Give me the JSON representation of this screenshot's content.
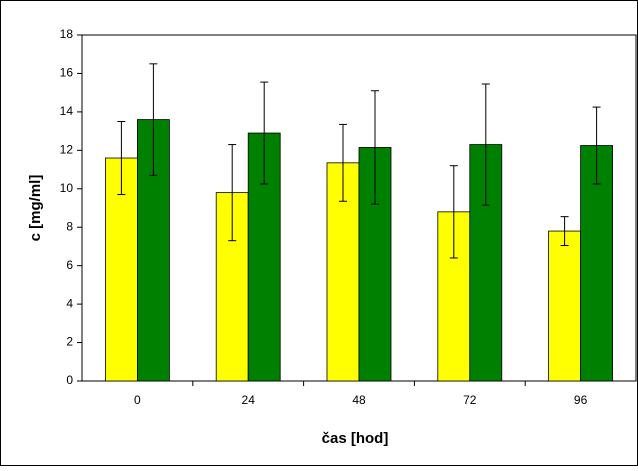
{
  "chart_data": {
    "type": "bar",
    "x_label": "čas [hod]",
    "y_label": "c [mg/ml]",
    "categories": [
      "0",
      "24",
      "48",
      "72",
      "96"
    ],
    "series": [
      {
        "color": "#ffff00",
        "values": [
          11.6,
          9.8,
          11.35,
          8.8,
          7.8
        ],
        "errors": [
          1.9,
          2.5,
          2.0,
          2.4,
          0.75
        ]
      },
      {
        "color": "#008000",
        "values": [
          13.6,
          12.9,
          12.15,
          12.3,
          12.25
        ],
        "errors": [
          2.9,
          2.65,
          2.95,
          3.15,
          2.0
        ]
      }
    ],
    "ylim": [
      0,
      18
    ],
    "yticks": [
      0,
      2,
      4,
      6,
      8,
      10,
      12,
      14,
      16,
      18
    ],
    "grid": false
  }
}
